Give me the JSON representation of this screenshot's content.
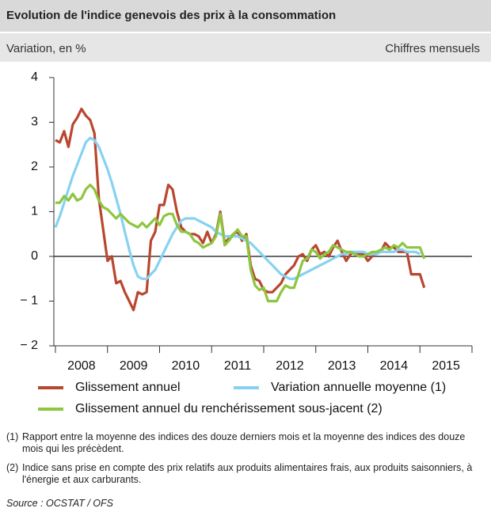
{
  "header": {
    "title": "Evolution de l'indice genevois des prix à la consommation",
    "subtitle_left": "Variation, en %",
    "subtitle_right": "Chiffres mensuels"
  },
  "chart_data": {
    "type": "line",
    "x": [
      2008,
      2008.083,
      2008.167,
      2008.25,
      2008.333,
      2008.417,
      2008.5,
      2008.583,
      2008.667,
      2008.75,
      2008.833,
      2008.917,
      2009,
      2009.083,
      2009.167,
      2009.25,
      2009.333,
      2009.417,
      2009.5,
      2009.583,
      2009.667,
      2009.75,
      2009.833,
      2009.917,
      2010,
      2010.083,
      2010.167,
      2010.25,
      2010.333,
      2010.417,
      2010.5,
      2010.583,
      2010.667,
      2010.75,
      2010.833,
      2010.917,
      2011,
      2011.083,
      2011.167,
      2011.25,
      2011.333,
      2011.417,
      2011.5,
      2011.583,
      2011.667,
      2011.75,
      2011.833,
      2011.917,
      2012,
      2012.083,
      2012.167,
      2012.25,
      2012.333,
      2012.417,
      2012.5,
      2012.583,
      2012.667,
      2012.75,
      2012.833,
      2012.917,
      2013,
      2013.083,
      2013.167,
      2013.25,
      2013.333,
      2013.417,
      2013.5,
      2013.583,
      2013.667,
      2013.75,
      2013.833,
      2013.917,
      2014,
      2014.083,
      2014.167,
      2014.25,
      2014.333,
      2014.417,
      2014.5,
      2014.583,
      2014.667,
      2014.75,
      2014.833,
      2014.917,
      2015,
      2015.083
    ],
    "series": [
      {
        "name": "Glissement annuel",
        "color": "#b9462f",
        "values": [
          2.6,
          2.55,
          2.8,
          2.45,
          2.95,
          3.1,
          3.3,
          3.15,
          3.05,
          2.75,
          1.3,
          0.6,
          -0.1,
          0,
          -0.6,
          -0.55,
          -0.8,
          -1,
          -1.2,
          -0.8,
          -0.85,
          -0.8,
          0.35,
          0.55,
          1.15,
          1.15,
          1.6,
          1.5,
          1,
          0.65,
          0.55,
          0.5,
          0.5,
          0.45,
          0.3,
          0.55,
          0.3,
          0.5,
          1,
          0.3,
          0.4,
          0.5,
          0.55,
          0.35,
          0.5,
          -0.2,
          -0.5,
          -0.55,
          -0.75,
          -0.8,
          -0.8,
          -0.7,
          -0.6,
          -0.4,
          -0.3,
          -0.2,
          0,
          0.05,
          -0.1,
          0.15,
          0.25,
          0.05,
          0.1,
          0,
          0.2,
          0.35,
          0.1,
          -0.1,
          0.05,
          0.1,
          0.05,
          0.05,
          -0.1,
          0,
          0.1,
          0.1,
          0.3,
          0.2,
          0.2,
          0.1,
          0.1,
          0.1,
          -0.4,
          -0.4,
          -0.4,
          -0.7
        ]
      },
      {
        "name": "Variation annuelle moyenne (1)",
        "color": "#86d2f2",
        "values": [
          0.65,
          0.9,
          1.2,
          1.5,
          1.8,
          2.05,
          2.3,
          2.55,
          2.65,
          2.6,
          2.45,
          2.2,
          1.95,
          1.65,
          1.3,
          0.95,
          0.55,
          0.15,
          -0.2,
          -0.45,
          -0.5,
          -0.5,
          -0.4,
          -0.3,
          -0.1,
          0.1,
          0.3,
          0.5,
          0.65,
          0.8,
          0.85,
          0.85,
          0.85,
          0.8,
          0.75,
          0.7,
          0.65,
          0.55,
          0.5,
          0.45,
          0.45,
          0.45,
          0.45,
          0.4,
          0.35,
          0.3,
          0.2,
          0.1,
          0,
          -0.1,
          -0.2,
          -0.3,
          -0.4,
          -0.45,
          -0.5,
          -0.5,
          -0.45,
          -0.4,
          -0.35,
          -0.3,
          -0.25,
          -0.2,
          -0.15,
          -0.1,
          -0.05,
          0,
          0.05,
          0.05,
          0.1,
          0.1,
          0.1,
          0.1,
          0.05,
          0.05,
          0.05,
          0.1,
          0.1,
          0.1,
          0.1,
          0.15,
          0.15,
          0.1,
          0.1,
          0.1,
          0.05,
          null
        ]
      },
      {
        "name": "Glissement annuel du renchérissement sous-jacent (2)",
        "color": "#8dc63f",
        "values": [
          1.2,
          1.2,
          1.35,
          1.25,
          1.4,
          1.25,
          1.3,
          1.5,
          1.6,
          1.5,
          1.25,
          1.1,
          1.05,
          0.95,
          0.85,
          0.95,
          0.85,
          0.75,
          0.7,
          0.65,
          0.75,
          0.65,
          0.75,
          0.85,
          0.7,
          0.9,
          0.95,
          0.95,
          0.7,
          0.55,
          0.55,
          0.5,
          0.35,
          0.3,
          0.2,
          0.25,
          0.3,
          0.45,
          0.95,
          0.25,
          0.35,
          0.5,
          0.6,
          0.45,
          0.45,
          -0.3,
          -0.65,
          -0.75,
          -0.7,
          -1,
          -1,
          -1,
          -0.8,
          -0.65,
          -0.7,
          -0.7,
          -0.4,
          -0.1,
          -0.05,
          0.15,
          0.1,
          -0.05,
          0.05,
          0.1,
          0.25,
          0.2,
          0.15,
          0.1,
          0.1,
          0.05,
          0,
          0,
          0.05,
          0.1,
          0.1,
          0.15,
          0.2,
          0.15,
          0.25,
          0.2,
          0.3,
          0.2,
          0.2,
          0.2,
          0.2,
          -0.05
        ]
      }
    ],
    "xlim": [
      2008,
      2016
    ],
    "xticks": [
      2008,
      2009,
      2010,
      2011,
      2012,
      2013,
      2014,
      2015,
      2016
    ],
    "ylim": [
      -2,
      4
    ],
    "yticks": [
      4,
      3,
      2,
      1,
      0,
      {
        "value": -1,
        "label": "− 1"
      },
      {
        "value": -2,
        "label": "− 2"
      }
    ]
  },
  "notes": [
    {
      "marker": "(1)",
      "text": "Rapport entre la moyenne des indices des douze derniers mois et la moyenne des indices des douze mois qui les précèdent."
    },
    {
      "marker": "(2)",
      "text": "Indice sans prise en compte des prix relatifs aux produits alimentaires frais, aux produits saisonniers, à l'énergie et aux carburants."
    }
  ],
  "source": "Source : OCSTAT / OFS"
}
